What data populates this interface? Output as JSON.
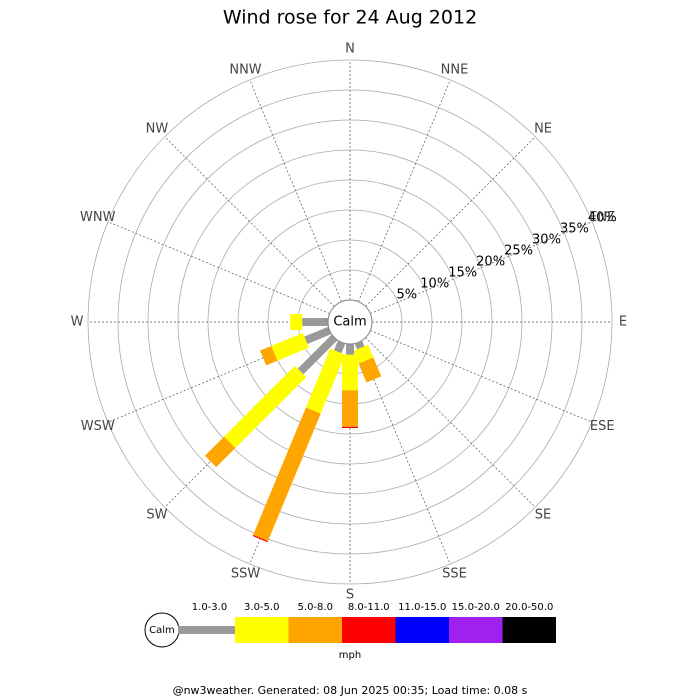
{
  "chart_data": {
    "type": "windrose",
    "title": "Wind rose for 24 Aug 2012",
    "calm_label": "Calm",
    "categories": [
      "N",
      "NNE",
      "NE",
      "ENE",
      "E",
      "ESE",
      "SE",
      "SSE",
      "S",
      "SSW",
      "SW",
      "WSW",
      "W",
      "WNW",
      "NW",
      "NNW"
    ],
    "rlim": [
      0,
      40
    ],
    "rticks": [
      {
        "value": 5,
        "label": "5%"
      },
      {
        "value": 10,
        "label": "10%"
      },
      {
        "value": 15,
        "label": "15%"
      },
      {
        "value": 20,
        "label": "20%"
      },
      {
        "value": 25,
        "label": "25%"
      },
      {
        "value": 30,
        "label": "30%"
      },
      {
        "value": 35,
        "label": "35%"
      },
      {
        "value": 40,
        "label": "40%"
      }
    ],
    "units": "mph",
    "series": [
      {
        "name": "1.0-3.0",
        "color": "#999999",
        "values": [
          0,
          0,
          0,
          0,
          0,
          0,
          0,
          1.0,
          1.8,
          1.7,
          8.0,
          4.3,
          4.3,
          0,
          0,
          0
        ]
      },
      {
        "name": "3.0-5.0",
        "color": "#ffff00",
        "values": [
          0,
          0,
          0,
          0,
          0,
          0,
          0,
          2.3,
          5.9,
          10.6,
          16.7,
          5.7,
          2.0,
          0,
          0,
          0
        ]
      },
      {
        "name": "5.0-8.0",
        "color": "#ffa500",
        "values": [
          0,
          0,
          0,
          0,
          0,
          0,
          0,
          3.4,
          6.1,
          23.0,
          4.5,
          2.0,
          0,
          0,
          0,
          0
        ]
      },
      {
        "name": "8.0-11.0",
        "color": "#ff0000",
        "values": [
          0,
          0,
          0,
          0,
          0,
          0,
          0,
          0,
          0.2,
          0.2,
          0,
          0,
          0,
          0,
          0,
          0
        ]
      },
      {
        "name": "11.0-15.0",
        "color": "#0000ff",
        "values": [
          0,
          0,
          0,
          0,
          0,
          0,
          0,
          0,
          0,
          0,
          0,
          0,
          0,
          0,
          0,
          0
        ]
      },
      {
        "name": "15.0-20.0",
        "color": "#a020f0",
        "values": [
          0,
          0,
          0,
          0,
          0,
          0,
          0,
          0,
          0,
          0,
          0,
          0,
          0,
          0,
          0,
          0
        ]
      },
      {
        "name": "20.0-50.0",
        "color": "#000000",
        "values": [
          0,
          0,
          0,
          0,
          0,
          0,
          0,
          0,
          0,
          0,
          0,
          0,
          0,
          0,
          0,
          0
        ]
      }
    ],
    "footer": "@nw3weather. Generated: 08 Jun 2025 00:35; Load time: 0.08 s"
  }
}
